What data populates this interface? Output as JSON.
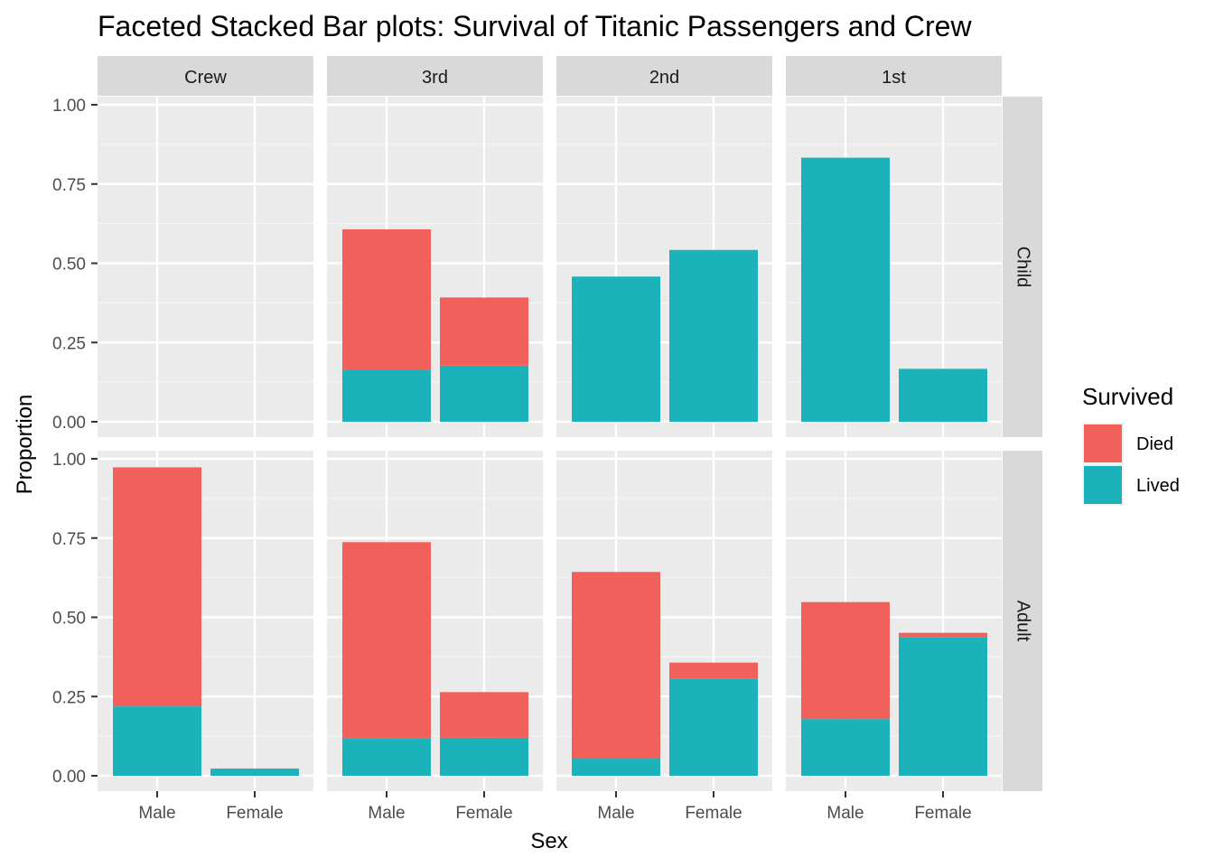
{
  "chart_data": {
    "type": "bar",
    "stacked": true,
    "title": "Faceted Stacked Bar plots: Survival of Titanic Passengers and Crew",
    "xlabel": "Sex",
    "ylabel": "Proportion",
    "ylim": [
      0,
      1
    ],
    "yticks": [
      "0.00",
      "0.25",
      "0.50",
      "0.75",
      "1.00"
    ],
    "categories": [
      "Male",
      "Female"
    ],
    "columns": [
      "Crew",
      "3rd",
      "2nd",
      "1st"
    ],
    "rows": [
      "Child",
      "Adult"
    ],
    "grid": true,
    "legend": {
      "title": "Survived",
      "position": "right",
      "entries": [
        {
          "name": "Died",
          "color": "#F8766D"
        },
        {
          "name": "Lived",
          "color": "#00BFC4"
        }
      ]
    },
    "colors": {
      "Died": "#F2605B",
      "Lived": "#1BB3B9"
    },
    "panels": [
      {
        "row": "Child",
        "column": "Crew",
        "values": [
          {
            "sex": "Male",
            "Lived": 0,
            "Died": 0
          },
          {
            "sex": "Female",
            "Lived": 0,
            "Died": 0
          }
        ]
      },
      {
        "row": "Child",
        "column": "3rd",
        "values": [
          {
            "sex": "Male",
            "Lived": 0.165,
            "Died": 0.442
          },
          {
            "sex": "Female",
            "Lived": 0.177,
            "Died": 0.215
          }
        ]
      },
      {
        "row": "Child",
        "column": "2nd",
        "values": [
          {
            "sex": "Male",
            "Lived": 0.458,
            "Died": 0
          },
          {
            "sex": "Female",
            "Lived": 0.542,
            "Died": 0
          }
        ]
      },
      {
        "row": "Child",
        "column": "1st",
        "values": [
          {
            "sex": "Male",
            "Lived": 0.833,
            "Died": 0
          },
          {
            "sex": "Female",
            "Lived": 0.167,
            "Died": 0
          }
        ]
      },
      {
        "row": "Adult",
        "column": "Crew",
        "values": [
          {
            "sex": "Male",
            "Lived": 0.219,
            "Died": 0.754
          },
          {
            "sex": "Female",
            "Lived": 0.02,
            "Died": 0.003
          }
        ]
      },
      {
        "row": "Adult",
        "column": "3rd",
        "values": [
          {
            "sex": "Male",
            "Lived": 0.117,
            "Died": 0.62
          },
          {
            "sex": "Female",
            "Lived": 0.12,
            "Died": 0.144
          }
        ]
      },
      {
        "row": "Adult",
        "column": "2nd",
        "values": [
          {
            "sex": "Male",
            "Lived": 0.054,
            "Died": 0.589
          },
          {
            "sex": "Female",
            "Lived": 0.307,
            "Died": 0.05
          }
        ]
      },
      {
        "row": "Adult",
        "column": "1st",
        "values": [
          {
            "sex": "Male",
            "Lived": 0.179,
            "Died": 0.369
          },
          {
            "sex": "Female",
            "Lived": 0.438,
            "Died": 0.013
          }
        ]
      }
    ]
  }
}
